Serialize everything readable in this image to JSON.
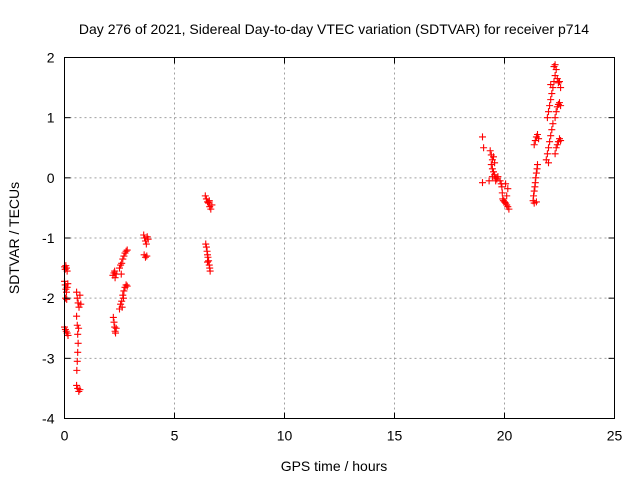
{
  "chart_data": {
    "type": "scatter",
    "title": "Day 276 of 2021, Sidereal Day-to-day VTEC variation (SDTVAR) for receiver p714",
    "xlabel": "GPS time / hours",
    "ylabel": "SDTVAR / TECUs",
    "xlim": [
      0,
      25
    ],
    "ylim": [
      -4,
      2
    ],
    "xticks": [
      "0",
      "5",
      "10",
      "15",
      "20",
      "25"
    ],
    "yticks": [
      "-4",
      "-3",
      "-2",
      "-1",
      "0",
      "1",
      "2"
    ],
    "grid": true,
    "marker": "+",
    "color": "#ff0000",
    "series": [
      {
        "name": "SDTVAR",
        "points": [
          [
            0.0,
            -1.48
          ],
          [
            0.03,
            -1.52
          ],
          [
            0.06,
            -1.46
          ],
          [
            0.09,
            -1.5
          ],
          [
            0.12,
            -1.55
          ],
          [
            0.0,
            -1.72
          ],
          [
            0.03,
            -1.78
          ],
          [
            0.06,
            -1.85
          ],
          [
            0.09,
            -1.9
          ],
          [
            0.12,
            -1.82
          ],
          [
            0.15,
            -1.76
          ],
          [
            0.05,
            -2.0
          ],
          [
            0.1,
            -2.02
          ],
          [
            0.0,
            -2.48
          ],
          [
            0.04,
            -2.52
          ],
          [
            0.08,
            -2.55
          ],
          [
            0.12,
            -2.58
          ],
          [
            0.16,
            -2.62
          ],
          [
            0.55,
            -1.9
          ],
          [
            0.58,
            -2.0
          ],
          [
            0.62,
            -2.08
          ],
          [
            0.66,
            -2.15
          ],
          [
            0.7,
            -1.95
          ],
          [
            0.74,
            -2.1
          ],
          [
            0.55,
            -2.3
          ],
          [
            0.58,
            -2.45
          ],
          [
            0.6,
            -2.6
          ],
          [
            0.62,
            -2.75
          ],
          [
            0.6,
            -2.9
          ],
          [
            0.58,
            -3.05
          ],
          [
            0.56,
            -3.2
          ],
          [
            0.64,
            -2.5
          ],
          [
            0.55,
            -3.45
          ],
          [
            0.6,
            -3.5
          ],
          [
            0.65,
            -3.55
          ],
          [
            0.7,
            -3.52
          ],
          [
            2.2,
            -1.62
          ],
          [
            2.25,
            -1.58
          ],
          [
            2.3,
            -1.66
          ],
          [
            2.35,
            -1.6
          ],
          [
            2.28,
            -1.55
          ],
          [
            2.22,
            -2.32
          ],
          [
            2.25,
            -2.4
          ],
          [
            2.28,
            -2.48
          ],
          [
            2.3,
            -2.55
          ],
          [
            2.35,
            -2.5
          ],
          [
            2.32,
            -2.58
          ],
          [
            2.5,
            -1.5
          ],
          [
            2.55,
            -1.45
          ],
          [
            2.6,
            -1.42
          ],
          [
            2.65,
            -1.35
          ],
          [
            2.7,
            -1.3
          ],
          [
            2.75,
            -1.25
          ],
          [
            2.8,
            -1.22
          ],
          [
            2.85,
            -1.2
          ],
          [
            2.58,
            -1.6
          ],
          [
            2.5,
            -2.18
          ],
          [
            2.55,
            -2.1
          ],
          [
            2.6,
            -2.05
          ],
          [
            2.65,
            -1.95
          ],
          [
            2.7,
            -1.88
          ],
          [
            2.75,
            -1.82
          ],
          [
            2.8,
            -1.78
          ],
          [
            2.85,
            -1.8
          ],
          [
            2.62,
            -2.15
          ],
          [
            2.68,
            -2.0
          ],
          [
            3.6,
            -0.95
          ],
          [
            3.64,
            -1.0
          ],
          [
            3.68,
            -1.05
          ],
          [
            3.72,
            -1.1
          ],
          [
            3.76,
            -0.98
          ],
          [
            3.8,
            -1.02
          ],
          [
            3.62,
            -1.28
          ],
          [
            3.68,
            -1.32
          ],
          [
            3.74,
            -1.3
          ],
          [
            6.4,
            -0.3
          ],
          [
            6.45,
            -0.35
          ],
          [
            6.5,
            -0.4
          ],
          [
            6.55,
            -0.42
          ],
          [
            6.6,
            -0.48
          ],
          [
            6.65,
            -0.52
          ],
          [
            6.7,
            -0.45
          ],
          [
            6.58,
            -0.38
          ],
          [
            6.42,
            -1.1
          ],
          [
            6.45,
            -1.15
          ],
          [
            6.48,
            -1.22
          ],
          [
            6.5,
            -1.28
          ],
          [
            6.52,
            -1.32
          ],
          [
            6.55,
            -1.38
          ],
          [
            6.58,
            -1.45
          ],
          [
            6.6,
            -1.5
          ],
          [
            6.62,
            -1.55
          ],
          [
            6.5,
            -1.4
          ],
          [
            19.0,
            0.68
          ],
          [
            19.05,
            0.5
          ],
          [
            19.0,
            -0.08
          ],
          [
            19.3,
            -0.05
          ],
          [
            19.35,
            0.45
          ],
          [
            19.4,
            0.38
          ],
          [
            19.45,
            0.3
          ],
          [
            19.4,
            0.22
          ],
          [
            19.45,
            0.15
          ],
          [
            19.5,
            0.1
          ],
          [
            19.55,
            0.05
          ],
          [
            19.6,
            0.0
          ],
          [
            19.65,
            -0.02
          ],
          [
            19.7,
            0.02
          ],
          [
            19.5,
            0.35
          ],
          [
            19.55,
            0.25
          ],
          [
            19.45,
            0.02
          ],
          [
            19.6,
            -0.05
          ],
          [
            19.8,
            -0.05
          ],
          [
            19.85,
            -0.1
          ],
          [
            19.88,
            -0.15
          ],
          [
            19.9,
            -0.25
          ],
          [
            19.92,
            -0.35
          ],
          [
            19.95,
            -0.38
          ],
          [
            20.0,
            -0.4
          ],
          [
            20.05,
            -0.42
          ],
          [
            20.1,
            -0.45
          ],
          [
            20.15,
            -0.48
          ],
          [
            20.2,
            -0.52
          ],
          [
            20.1,
            -0.3
          ],
          [
            20.15,
            -0.18
          ],
          [
            20.05,
            -0.1
          ],
          [
            21.3,
            -0.38
          ],
          [
            21.32,
            -0.3
          ],
          [
            21.35,
            -0.22
          ],
          [
            21.38,
            -0.15
          ],
          [
            21.4,
            -0.08
          ],
          [
            21.42,
            0.0
          ],
          [
            21.45,
            0.08
          ],
          [
            21.48,
            0.15
          ],
          [
            21.5,
            0.22
          ],
          [
            21.35,
            -0.42
          ],
          [
            21.45,
            -0.4
          ],
          [
            21.35,
            0.55
          ],
          [
            21.4,
            0.62
          ],
          [
            21.45,
            0.68
          ],
          [
            21.5,
            0.72
          ],
          [
            21.55,
            0.65
          ],
          [
            21.9,
            0.3
          ],
          [
            21.95,
            0.4
          ],
          [
            22.0,
            0.5
          ],
          [
            22.05,
            0.6
          ],
          [
            22.1,
            0.7
          ],
          [
            22.15,
            0.8
          ],
          [
            22.2,
            0.9
          ],
          [
            22.0,
            0.25
          ],
          [
            21.95,
            1.0
          ],
          [
            22.0,
            1.1
          ],
          [
            22.05,
            1.2
          ],
          [
            22.1,
            1.3
          ],
          [
            22.15,
            1.4
          ],
          [
            22.2,
            1.5
          ],
          [
            22.25,
            1.6
          ],
          [
            22.3,
            1.7
          ],
          [
            22.35,
            1.8
          ],
          [
            22.25,
            1.85
          ],
          [
            22.3,
            1.88
          ],
          [
            22.1,
            1.55
          ],
          [
            22.4,
            1.65
          ],
          [
            22.45,
            1.58
          ],
          [
            22.5,
            1.6
          ],
          [
            22.55,
            1.5
          ],
          [
            22.3,
            0.4
          ],
          [
            22.35,
            0.5
          ],
          [
            22.4,
            0.55
          ],
          [
            22.45,
            0.6
          ],
          [
            22.5,
            0.65
          ],
          [
            22.55,
            0.62
          ],
          [
            22.3,
            1.0
          ],
          [
            22.35,
            1.1
          ],
          [
            22.4,
            1.18
          ],
          [
            22.45,
            1.22
          ],
          [
            22.5,
            1.25
          ],
          [
            22.55,
            1.2
          ]
        ]
      }
    ]
  }
}
